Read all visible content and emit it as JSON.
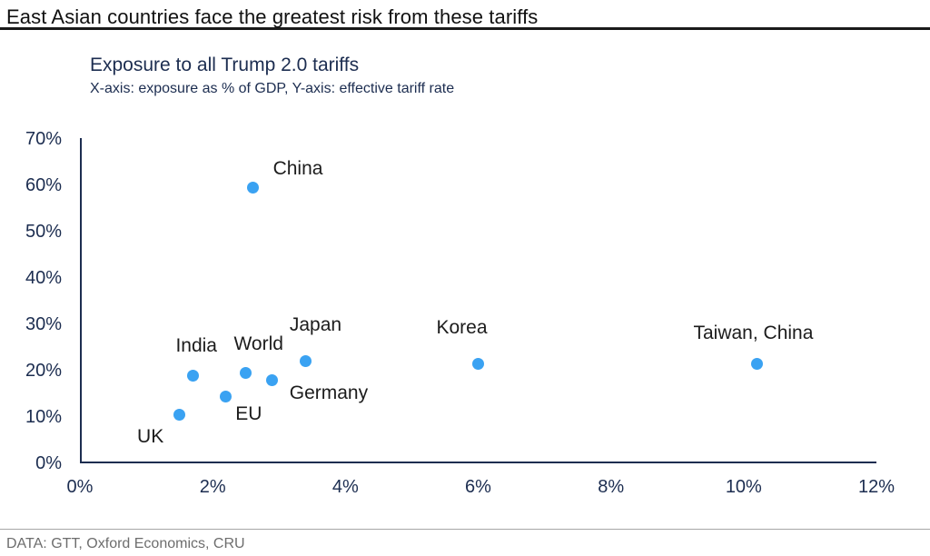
{
  "page": {
    "headline": "East Asian countries face the greatest risk from these tariffs",
    "footer_source": "DATA: GTT, Oxford Economics, CRU"
  },
  "chart": {
    "title": "Exposure to all Trump 2.0 tariffs",
    "subtitle": "X-axis: exposure as % of GDP, Y-axis: effective tariff rate"
  },
  "colors": {
    "dot": "#3aa2f2",
    "axis": "#1c2d50",
    "tick_text": "#1c2d50",
    "title_text": "#1c2d50",
    "point_label_text": "#1c1c1c",
    "headline_text": "#111111",
    "footer_text": "#6d6d6d",
    "footer_rule": "#a6a6a6"
  },
  "chart_data": {
    "type": "scatter",
    "title": "Exposure to all Trump 2.0 tariffs",
    "subtitle": "X-axis: exposure as % of GDP, Y-axis: effective tariff rate",
    "xlabel": "exposure as % of GDP",
    "ylabel": "effective tariff rate",
    "xlim": [
      0,
      12
    ],
    "ylim": [
      0,
      70
    ],
    "grid": false,
    "legend": "none",
    "x_ticks": [
      {
        "value": 0,
        "label": "0%"
      },
      {
        "value": 2,
        "label": "2%"
      },
      {
        "value": 4,
        "label": "4%"
      },
      {
        "value": 6,
        "label": "6%"
      },
      {
        "value": 8,
        "label": "8%"
      },
      {
        "value": 10,
        "label": "10%"
      },
      {
        "value": 12,
        "label": "12%"
      }
    ],
    "y_ticks": [
      {
        "value": 0,
        "label": "0%"
      },
      {
        "value": 10,
        "label": "10%"
      },
      {
        "value": 20,
        "label": "20%"
      },
      {
        "value": 30,
        "label": "30%"
      },
      {
        "value": 40,
        "label": "40%"
      },
      {
        "value": 50,
        "label": "50%"
      },
      {
        "value": 60,
        "label": "60%"
      },
      {
        "value": 70,
        "label": "70%"
      }
    ],
    "points": [
      {
        "name": "UK",
        "x": 1.5,
        "y": 10.5,
        "label_offset": [
          -32,
          25
        ]
      },
      {
        "name": "India",
        "x": 1.7,
        "y": 19,
        "label_offset": [
          4,
          -32
        ]
      },
      {
        "name": "EU",
        "x": 2.2,
        "y": 14.5,
        "label_offset": [
          25,
          20
        ]
      },
      {
        "name": "World",
        "x": 2.5,
        "y": 19.5,
        "label_offset": [
          14,
          -32
        ]
      },
      {
        "name": "China",
        "x": 2.6,
        "y": 59.5,
        "label_offset": [
          50,
          -21
        ]
      },
      {
        "name": "Germany",
        "x": 2.9,
        "y": 18,
        "label_offset": [
          62,
          15
        ]
      },
      {
        "name": "Japan",
        "x": 3.4,
        "y": 22,
        "label_offset": [
          11,
          -40
        ]
      },
      {
        "name": "Korea",
        "x": 6.0,
        "y": 21.5,
        "label_offset": [
          -18,
          -39
        ]
      },
      {
        "name": "Taiwan, China",
        "x": 10.2,
        "y": 21.5,
        "label_offset": [
          -4,
          -33
        ]
      }
    ]
  }
}
